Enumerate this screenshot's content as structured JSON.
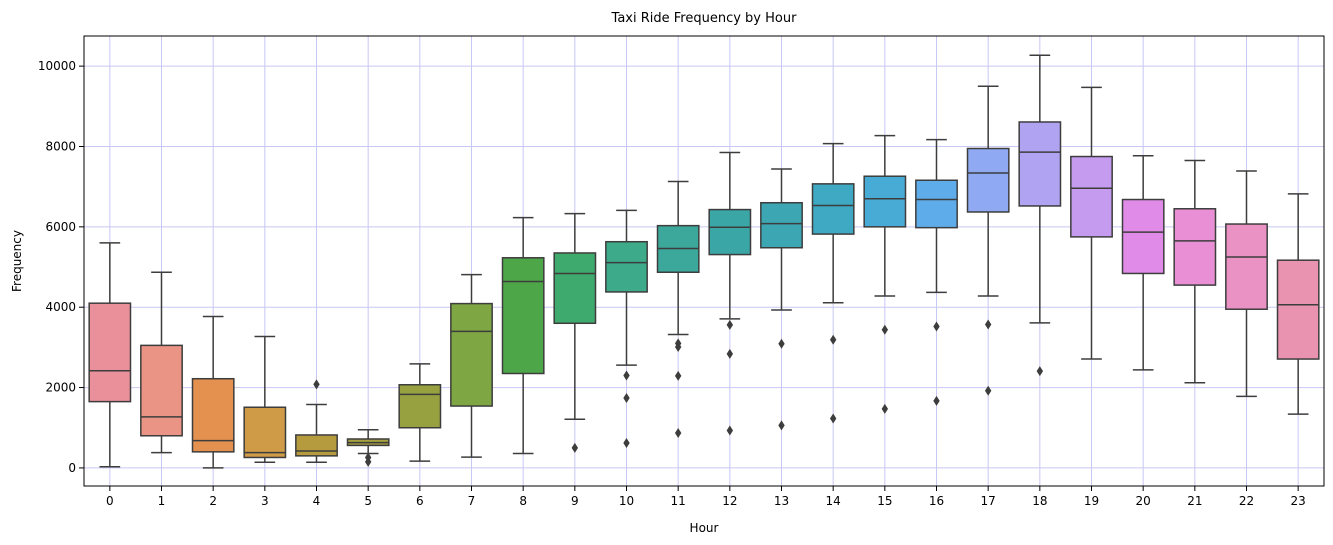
{
  "chart_data": {
    "type": "box",
    "title": "Taxi Ride Frequency by Hour",
    "xlabel": "Hour",
    "ylabel": "Frequency",
    "ylim": [
      -450,
      10750
    ],
    "yticks": [
      0,
      2000,
      4000,
      6000,
      8000,
      10000
    ],
    "grid": true,
    "legend": "none",
    "categories": [
      "0",
      "1",
      "2",
      "3",
      "4",
      "5",
      "6",
      "7",
      "8",
      "9",
      "10",
      "11",
      "12",
      "13",
      "14",
      "15",
      "16",
      "17",
      "18",
      "19",
      "20",
      "21",
      "22",
      "23"
    ],
    "boxes": [
      {
        "hour": "0",
        "whisker_low": 30,
        "q1": 1650,
        "median": 2420,
        "q3": 4100,
        "whisker_high": 5600,
        "outliers": [],
        "color": "#e9909a"
      },
      {
        "hour": "1",
        "whisker_low": 380,
        "q1": 800,
        "median": 1270,
        "q3": 3050,
        "whisker_high": 4870,
        "outliers": [],
        "color": "#e99484"
      },
      {
        "hour": "2",
        "whisker_low": 0,
        "q1": 400,
        "median": 680,
        "q3": 2220,
        "whisker_high": 3770,
        "outliers": [],
        "color": "#e4914f"
      },
      {
        "hour": "3",
        "whisker_low": 140,
        "q1": 260,
        "median": 380,
        "q3": 1510,
        "whisker_high": 3270,
        "outliers": [],
        "color": "#cf9b47"
      },
      {
        "hour": "4",
        "whisker_low": 140,
        "q1": 300,
        "median": 420,
        "q3": 820,
        "whisker_high": 1580,
        "outliers": [
          2080
        ],
        "color": "#b69a3e"
      },
      {
        "hour": "5",
        "whisker_low": 360,
        "q1": 560,
        "median": 630,
        "q3": 720,
        "whisker_high": 950,
        "outliers": [
          150,
          260
        ],
        "color": "#a69f3e"
      },
      {
        "hour": "6",
        "whisker_low": 170,
        "q1": 1000,
        "median": 1830,
        "q3": 2070,
        "whisker_high": 2590,
        "outliers": [],
        "color": "#98a13f"
      },
      {
        "hour": "7",
        "whisker_low": 270,
        "q1": 1540,
        "median": 3400,
        "q3": 4090,
        "whisker_high": 4810,
        "outliers": [],
        "color": "#7ea642"
      },
      {
        "hour": "8",
        "whisker_low": 360,
        "q1": 2350,
        "median": 4640,
        "q3": 5230,
        "whisker_high": 6230,
        "outliers": [],
        "color": "#4da748"
      },
      {
        "hour": "9",
        "whisker_low": 1210,
        "q1": 3600,
        "median": 4840,
        "q3": 5350,
        "whisker_high": 6330,
        "outliers": [
          500
        ],
        "color": "#3faa6d"
      },
      {
        "hour": "10",
        "whisker_low": 2560,
        "q1": 4380,
        "median": 5110,
        "q3": 5630,
        "whisker_high": 6410,
        "outliers": [
          2300,
          1740,
          620
        ],
        "color": "#3daa8a"
      },
      {
        "hour": "11",
        "whisker_low": 3320,
        "q1": 4870,
        "median": 5460,
        "q3": 6030,
        "whisker_high": 7130,
        "outliers": [
          3100,
          3010,
          2290,
          870
        ],
        "color": "#3ba89b"
      },
      {
        "hour": "12",
        "whisker_low": 3710,
        "q1": 5310,
        "median": 5990,
        "q3": 6430,
        "whisker_high": 7850,
        "outliers": [
          3560,
          2840,
          930
        ],
        "color": "#3ba6a6"
      },
      {
        "hour": "13",
        "whisker_low": 3930,
        "q1": 5480,
        "median": 6080,
        "q3": 6600,
        "whisker_high": 7440,
        "outliers": [
          3090,
          1060
        ],
        "color": "#3ca7b3"
      },
      {
        "hour": "14",
        "whisker_low": 4110,
        "q1": 5820,
        "median": 6530,
        "q3": 7070,
        "whisker_high": 8070,
        "outliers": [
          3190,
          1230
        ],
        "color": "#3fa9c3"
      },
      {
        "hour": "15",
        "whisker_low": 4280,
        "q1": 6000,
        "median": 6700,
        "q3": 7260,
        "whisker_high": 8270,
        "outliers": [
          3440,
          1470
        ],
        "color": "#48abd6"
      },
      {
        "hour": "16",
        "whisker_low": 4370,
        "q1": 5980,
        "median": 6680,
        "q3": 7160,
        "whisker_high": 8170,
        "outliers": [
          3520,
          1670
        ],
        "color": "#5eacea"
      },
      {
        "hour": "17",
        "whisker_low": 4280,
        "q1": 6370,
        "median": 7340,
        "q3": 7950,
        "whisker_high": 9500,
        "outliers": [
          3570,
          1920
        ],
        "color": "#8fa9f2"
      },
      {
        "hour": "18",
        "whisker_low": 3610,
        "q1": 6520,
        "median": 7860,
        "q3": 8610,
        "whisker_high": 10270,
        "outliers": [
          2410
        ],
        "color": "#afa3f2"
      },
      {
        "hour": "19",
        "whisker_low": 2710,
        "q1": 5750,
        "median": 6960,
        "q3": 7750,
        "whisker_high": 9470,
        "outliers": [],
        "color": "#c59bef"
      },
      {
        "hour": "20",
        "whisker_low": 2440,
        "q1": 4840,
        "median": 5870,
        "q3": 6680,
        "whisker_high": 7770,
        "outliers": [],
        "color": "#e08be8"
      },
      {
        "hour": "21",
        "whisker_low": 2120,
        "q1": 4550,
        "median": 5650,
        "q3": 6450,
        "whisker_high": 7650,
        "outliers": [],
        "color": "#e98fd5"
      },
      {
        "hour": "22",
        "whisker_low": 1780,
        "q1": 3950,
        "median": 5250,
        "q3": 6070,
        "whisker_high": 7390,
        "outliers": [],
        "color": "#e992c3"
      },
      {
        "hour": "23",
        "whisker_low": 1340,
        "q1": 2710,
        "median": 4060,
        "q3": 5170,
        "whisker_high": 6820,
        "outliers": [],
        "color": "#e993b1"
      }
    ],
    "colors": {
      "grid": "#c8c8f5",
      "line": "#3d3d3d",
      "axis": "#000000"
    }
  }
}
